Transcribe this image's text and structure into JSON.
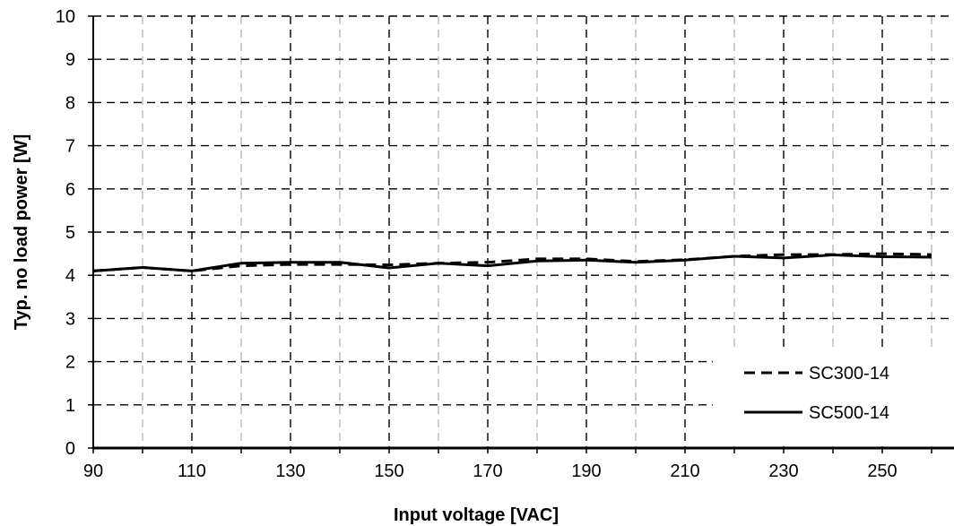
{
  "chart_data": {
    "type": "line",
    "title": "",
    "xlabel": "Input voltage [VAC]",
    "ylabel": "Typ. no load power [W]",
    "xlim": [
      90,
      260
    ],
    "ylim": [
      0,
      10
    ],
    "x_ticks": [
      90,
      110,
      130,
      150,
      170,
      190,
      210,
      230,
      250
    ],
    "y_ticks": [
      0,
      1,
      2,
      3,
      4,
      5,
      6,
      7,
      8,
      9,
      10
    ],
    "grid": true,
    "legend_position": "bottom-right",
    "series": [
      {
        "name": "SC300-14",
        "line_style": "dashed",
        "color": "#000000",
        "x": [
          90,
          100,
          110,
          120,
          130,
          140,
          150,
          160,
          170,
          180,
          190,
          200,
          210,
          220,
          230,
          240,
          250,
          260
        ],
        "y": [
          4.1,
          4.18,
          4.1,
          4.22,
          4.25,
          4.25,
          4.24,
          4.28,
          4.3,
          4.38,
          4.38,
          4.32,
          4.36,
          4.44,
          4.48,
          4.48,
          4.5,
          4.48
        ]
      },
      {
        "name": "SC500-14",
        "line_style": "solid",
        "color": "#000000",
        "x": [
          90,
          100,
          110,
          120,
          130,
          140,
          150,
          160,
          170,
          180,
          190,
          200,
          210,
          220,
          230,
          240,
          250,
          260
        ],
        "y": [
          4.1,
          4.18,
          4.1,
          4.28,
          4.3,
          4.3,
          4.17,
          4.28,
          4.22,
          4.33,
          4.35,
          4.3,
          4.35,
          4.44,
          4.4,
          4.47,
          4.43,
          4.42
        ]
      }
    ]
  }
}
